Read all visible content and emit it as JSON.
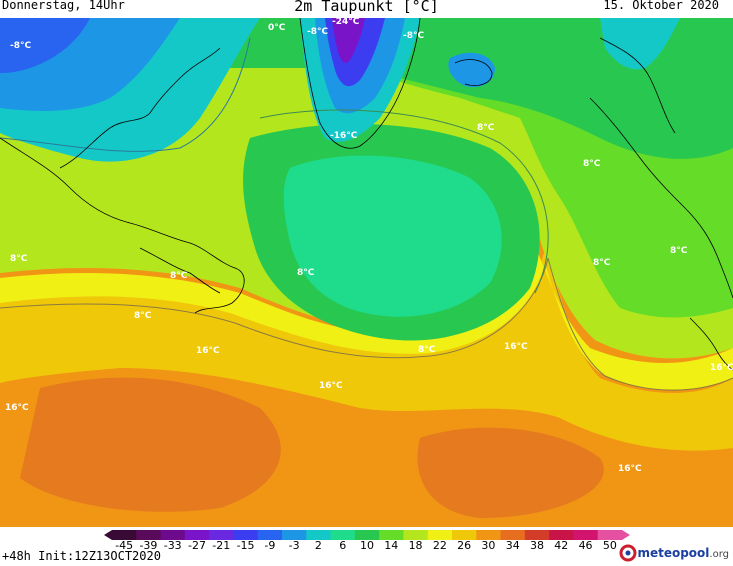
{
  "header": {
    "left": "Donnerstag, 14Uhr",
    "title": "2m Taupunkt [°C]",
    "right": "15. Oktober 2020"
  },
  "map": {
    "contour_labels": [
      "-24°C",
      "-8°C",
      "-8°C",
      "-8°C",
      "-16°C",
      "0°C",
      "8°C",
      "8°C",
      "8°C",
      "8°C",
      "8°C",
      "8°C",
      "8°C",
      "8°C",
      "8°C",
      "16°C",
      "16°C",
      "16°C",
      "16°C",
      "16°C",
      "16°C"
    ]
  },
  "colorbar": {
    "ticks": [
      "-45",
      "-39",
      "-33",
      "-27",
      "-21",
      "-15",
      "-9",
      "-3",
      "2",
      "6",
      "10",
      "14",
      "18",
      "22",
      "26",
      "30",
      "34",
      "38",
      "42",
      "46",
      "50"
    ],
    "colors": [
      "#3a0a36",
      "#5a0a5a",
      "#6e0a8c",
      "#7a14c8",
      "#6a28e0",
      "#3c3cf0",
      "#2864f0",
      "#1e96e6",
      "#14c8c8",
      "#1edc8c",
      "#28c850",
      "#64dc28",
      "#b4e61e",
      "#f0f014",
      "#f0c80a",
      "#f09614",
      "#e66e1e",
      "#d23c28",
      "#c81446",
      "#d2146e",
      "#e650a0"
    ]
  },
  "footer": {
    "init": "+48h Init:12Z13OCT2020",
    "logo": "meteopool",
    "logo_tld": ".org"
  }
}
